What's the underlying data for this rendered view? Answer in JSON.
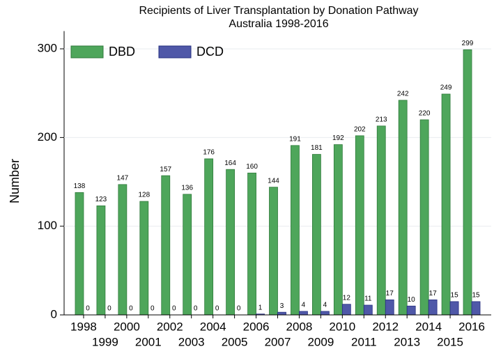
{
  "chart_data": {
    "type": "bar",
    "title": "Recipients of Liver Transplantation by Donation Pathway",
    "subtitle": "Australia 1998-2016",
    "y_label": "Number",
    "categories": [
      "1998",
      "1999",
      "2000",
      "2001",
      "2002",
      "2003",
      "2004",
      "2005",
      "2006",
      "2007",
      "2008",
      "2009",
      "2010",
      "2011",
      "2012",
      "2013",
      "2014",
      "2015",
      "2016"
    ],
    "series": [
      {
        "name": "DBD",
        "color": "#4ea65b",
        "values": [
          138,
          123,
          147,
          128,
          157,
          136,
          176,
          164,
          160,
          144,
          191,
          181,
          192,
          202,
          213,
          242,
          220,
          249,
          299
        ]
      },
      {
        "name": "DCD",
        "color": "#4f58a8",
        "values": [
          0,
          0,
          0,
          0,
          0,
          0,
          0,
          0,
          1,
          3,
          4,
          4,
          12,
          11,
          17,
          10,
          17,
          15,
          15
        ]
      }
    ],
    "ylim": [
      0,
      320
    ],
    "yticks": [
      0,
      100,
      200,
      300
    ],
    "grid": true,
    "legend": "upper left"
  }
}
